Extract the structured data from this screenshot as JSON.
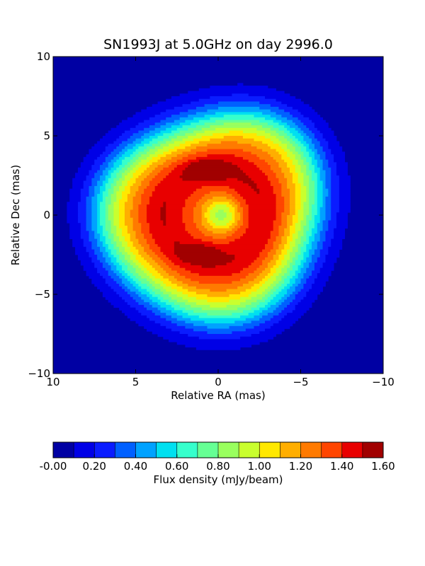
{
  "chart_data": {
    "type": "contour",
    "title": "SN1993J at 5.0GHz on day 2996.0",
    "xlabel": "Relative RA (mas)",
    "ylabel": "Relative Dec (mas)",
    "xlim": [
      10,
      -10
    ],
    "ylim": [
      -10,
      10
    ],
    "x_ticks": [
      10,
      5,
      0,
      -5,
      -10
    ],
    "x_tick_labels": [
      "10",
      "5",
      "0",
      "−5",
      "−10"
    ],
    "y_ticks": [
      10,
      5,
      0,
      -5,
      -10
    ],
    "y_tick_labels": [
      "10",
      "5",
      "0",
      "−5",
      "−10"
    ],
    "grid": false,
    "contour_levels": [
      0.0,
      0.1,
      0.2,
      0.3,
      0.4,
      0.5,
      0.6,
      0.7,
      0.8,
      0.9,
      1.0,
      1.1,
      1.2,
      1.3,
      1.4,
      1.5,
      1.6
    ],
    "level_colors": [
      "#0000a3",
      "#0000e6",
      "#0a1cff",
      "#0060ff",
      "#00a2ff",
      "#00e0f0",
      "#36ffcc",
      "#66ff94",
      "#99ff5e",
      "#c9ff2e",
      "#ffe800",
      "#ffae00",
      "#ff7a00",
      "#ff4500",
      "#e80000",
      "#a10000"
    ],
    "features": {
      "center": [
        0.3,
        0.0
      ],
      "ring_hotspots": [
        {
          "x": 0.7,
          "y": 2.8,
          "peak": 1.58
        },
        {
          "x": 1.1,
          "y": -2.4,
          "peak": 1.52
        }
      ],
      "central_minimum": {
        "x": -0.2,
        "y": 0.0,
        "value": 0.85
      }
    },
    "colorbar": {
      "orientation": "horizontal",
      "range": [
        0.0,
        1.6
      ],
      "tick_values": [
        0.0,
        0.2,
        0.4,
        0.6,
        0.8,
        1.0,
        1.2,
        1.4,
        1.6
      ],
      "tick_labels": [
        "-0.00",
        "0.20",
        "0.40",
        "0.60",
        "0.80",
        "1.00",
        "1.20",
        "1.40",
        "1.60"
      ],
      "label": "Flux density (mJy/beam)"
    }
  }
}
